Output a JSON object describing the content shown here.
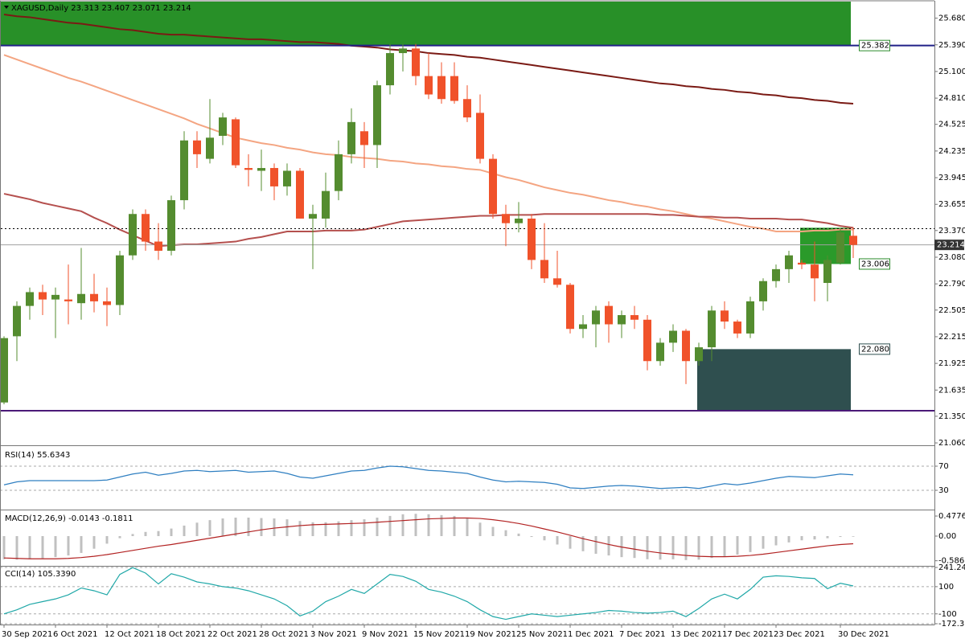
{
  "chart_data": [
    {
      "type": "candlestick",
      "title": "XAGUSD,Daily  23.313 23.407 23.071 23.214",
      "categories": [
        "30 Sep 2021",
        null,
        null,
        null,
        "6 Oct 2021",
        null,
        null,
        null,
        "12 Oct 2021",
        null,
        null,
        null,
        "18 Oct 2021",
        null,
        null,
        null,
        "22 Oct 2021",
        null,
        null,
        null,
        "28 Oct 2021",
        null,
        null,
        null,
        "3 Nov 2021",
        null,
        null,
        null,
        "9 Nov 2021",
        null,
        null,
        null,
        "15 Nov 2021",
        null,
        null,
        null,
        "19 Nov 2021",
        null,
        null,
        null,
        "25 Nov 2021",
        null,
        null,
        null,
        "1 Dec 2021",
        null,
        null,
        null,
        "7 Dec 2021",
        null,
        null,
        null,
        "13 Dec 2021",
        null,
        null,
        null,
        "17 Dec 2021",
        null,
        null,
        null,
        "23 Dec 2021",
        null,
        null,
        null,
        null,
        "30 Dec 2021",
        null
      ],
      "open": [
        21.5,
        22.22,
        22.55,
        22.7,
        22.62,
        22.62,
        22.58,
        22.68,
        22.6,
        22.56,
        23.1,
        23.55,
        23.25,
        23.15,
        23.7,
        24.35,
        24.15,
        24.4,
        24.58,
        24.05,
        24.02,
        24.05,
        23.85,
        24.02,
        23.5,
        23.5,
        23.8,
        24.2,
        24.45,
        24.3,
        24.95,
        25.3,
        25.35,
        25.05,
        25.05,
        25.05,
        24.8,
        24.65,
        24.15,
        23.55,
        23.45,
        23.5,
        23.05,
        22.85,
        22.78,
        22.3,
        22.35,
        22.55,
        22.35,
        22.45,
        22.4,
        21.95,
        22.15,
        22.28,
        21.95,
        22.1,
        22.5,
        22.38,
        22.25,
        22.6,
        22.82,
        22.95,
        23.02,
        23,
        22.8,
        23.02,
        23.313
      ],
      "high": [
        22.22,
        22.6,
        22.75,
        22.78,
        22.75,
        23,
        23.18,
        22.9,
        22.75,
        23.15,
        23.6,
        23.6,
        23.45,
        23.75,
        24.45,
        24.45,
        24.8,
        24.65,
        24.6,
        24.2,
        24.25,
        24.1,
        24.1,
        24.05,
        23.65,
        24,
        24.35,
        24.7,
        24.55,
        25,
        25.4,
        25.4,
        25.4,
        25.3,
        25.2,
        25.2,
        24.95,
        24.85,
        24.2,
        23.65,
        23.68,
        23.55,
        23.45,
        23.15,
        22.8,
        22.45,
        22.55,
        22.6,
        22.5,
        22.55,
        22.45,
        22.2,
        22.35,
        22.3,
        22.15,
        22.55,
        22.6,
        22.4,
        22.65,
        22.85,
        23,
        23.15,
        23.05,
        23.25,
        23.1,
        23.4,
        23.407
      ],
      "low": [
        21.48,
        21.95,
        22.4,
        22.45,
        22.2,
        22.35,
        22.4,
        22.48,
        22.33,
        22.45,
        23.05,
        23.15,
        23.05,
        23.1,
        23.6,
        24.05,
        24.1,
        24.3,
        24.05,
        23.85,
        23.8,
        23.7,
        23.75,
        23.5,
        22.95,
        23.4,
        23.7,
        24.1,
        24.05,
        24.05,
        24.85,
        25.1,
        24.95,
        24.8,
        24.75,
        24.75,
        24.55,
        24.1,
        23.5,
        23.2,
        23.35,
        22.95,
        22.8,
        22.75,
        22.25,
        22.2,
        22.1,
        22.15,
        22.2,
        22.3,
        21.85,
        21.9,
        22.05,
        21.7,
        21.9,
        21.95,
        22.3,
        22.2,
        22.2,
        22.5,
        22.75,
        22.8,
        22.95,
        22.6,
        22.6,
        23,
        23.071
      ],
      "close": [
        22.2,
        22.55,
        22.7,
        22.62,
        22.67,
        22.6,
        22.68,
        22.6,
        22.56,
        23.1,
        23.55,
        23.25,
        23.15,
        23.7,
        24.35,
        24.2,
        24.38,
        24.6,
        24.08,
        24.03,
        24.05,
        23.85,
        24.02,
        23.5,
        23.55,
        23.8,
        24.2,
        24.55,
        24.3,
        24.95,
        25.3,
        25.35,
        25.05,
        24.85,
        24.8,
        24.78,
        24.6,
        24.15,
        23.55,
        23.45,
        23.5,
        23.05,
        22.85,
        22.78,
        22.3,
        22.35,
        22.5,
        22.35,
        22.45,
        22.4,
        21.95,
        22.15,
        22.28,
        21.95,
        22.1,
        22.5,
        22.38,
        22.25,
        22.6,
        22.82,
        22.95,
        23.1,
        23,
        22.85,
        23.05,
        23.35,
        23.214
      ],
      "up_color": "#548c2f",
      "down_color": "#f0522a",
      "moving_averages": [
        {
          "color": "#7a1a14",
          "values": [
            25.72,
            25.7,
            25.69,
            25.67,
            25.65,
            25.63,
            25.62,
            25.6,
            25.58,
            25.56,
            25.55,
            25.53,
            25.51,
            25.5,
            25.5,
            25.49,
            25.48,
            25.47,
            25.46,
            25.45,
            25.45,
            25.44,
            25.43,
            25.42,
            25.42,
            25.41,
            25.4,
            25.38,
            25.37,
            25.36,
            25.34,
            25.33,
            25.32,
            25.3,
            25.29,
            25.28,
            25.26,
            25.25,
            25.23,
            25.21,
            25.19,
            25.17,
            25.15,
            25.13,
            25.11,
            25.09,
            25.07,
            25.05,
            25.03,
            25.01,
            24.99,
            24.97,
            24.96,
            24.94,
            24.93,
            24.91,
            24.9,
            24.88,
            24.87,
            24.85,
            24.84,
            24.82,
            24.81,
            24.79,
            24.78,
            24.76,
            24.75
          ]
        },
        {
          "color": "#f4a582",
          "values": [
            25.28,
            25.23,
            25.18,
            25.13,
            25.08,
            25.03,
            24.99,
            24.94,
            24.89,
            24.84,
            24.79,
            24.74,
            24.69,
            24.64,
            24.59,
            24.53,
            24.48,
            24.43,
            24.38,
            24.35,
            24.32,
            24.3,
            24.27,
            24.25,
            24.22,
            24.2,
            24.19,
            24.17,
            24.16,
            24.15,
            24.13,
            24.12,
            24.1,
            24.09,
            24.07,
            24.06,
            24.04,
            24.03,
            23.99,
            23.95,
            23.92,
            23.88,
            23.84,
            23.81,
            23.78,
            23.76,
            23.73,
            23.7,
            23.68,
            23.65,
            23.63,
            23.6,
            23.58,
            23.55,
            23.52,
            23.5,
            23.47,
            23.44,
            23.41,
            23.39,
            23.36,
            23.36,
            23.36,
            23.37,
            23.37,
            23.38,
            23.38
          ]
        },
        {
          "color": "#b5504e",
          "values": [
            23.77,
            23.74,
            23.71,
            23.67,
            23.64,
            23.61,
            23.58,
            23.51,
            23.45,
            23.38,
            23.32,
            23.26,
            23.2,
            23.21,
            23.22,
            23.22,
            23.23,
            23.24,
            23.25,
            23.28,
            23.3,
            23.33,
            23.36,
            23.36,
            23.36,
            23.37,
            23.37,
            23.37,
            23.38,
            23.41,
            23.44,
            23.47,
            23.48,
            23.49,
            23.5,
            23.51,
            23.52,
            23.53,
            23.53,
            23.54,
            23.54,
            23.54,
            23.55,
            23.55,
            23.55,
            23.55,
            23.55,
            23.55,
            23.55,
            23.55,
            23.55,
            23.54,
            23.54,
            23.53,
            23.52,
            23.52,
            23.51,
            23.51,
            23.5,
            23.5,
            23.5,
            23.49,
            23.49,
            23.47,
            23.45,
            23.42,
            23.4
          ]
        }
      ],
      "zones": [
        {
          "low": 25.382,
          "high": 25.86,
          "start": 0,
          "color": "#289028"
        },
        {
          "low": 21.41,
          "high": 22.08,
          "start": 54,
          "color": "#2f4f4f"
        },
        {
          "low": 23.006,
          "high": 23.4,
          "start": 62,
          "color": "#2a9a2a"
        }
      ],
      "levels": [
        {
          "value": 25.382,
          "color": "#202088",
          "line": "solid",
          "tag": "box",
          "tag_color": "#2a8a2a"
        },
        {
          "value": 23.39,
          "color": "#000000",
          "line": "dotted"
        },
        {
          "value": 23.214,
          "color": "#a0a0a0",
          "line": "solid",
          "tag": "axis",
          "tag_color": "#333333"
        },
        {
          "value": 23.006,
          "line": "none",
          "tag": "box",
          "tag_color": "#2a8a2a"
        },
        {
          "value": 22.08,
          "label": "22.080",
          "line": "none",
          "tag": "box",
          "tag_color": "#2f4f4f"
        },
        {
          "value": 21.41,
          "color": "#4b1a78",
          "line": "solid"
        }
      ],
      "ylim": [
        21.043,
        25.86
      ],
      "yticks": [
        {
          "value": 25.68,
          "label": "25.680"
        },
        {
          "value": 25.39,
          "label": "25.390"
        },
        {
          "value": 25.1,
          "label": "25.100"
        },
        {
          "value": 24.81,
          "label": "24.810"
        },
        24.525,
        24.235,
        23.945,
        23.655,
        {
          "value": 23.37,
          "label": "23.370"
        },
        {
          "value": 23.08,
          "label": "23.080"
        },
        {
          "value": 22.79,
          "label": "22.790"
        },
        22.505,
        22.215,
        21.925,
        21.635,
        {
          "value": 21.35,
          "label": "21.350"
        },
        {
          "value": 21.06,
          "label": "21.060"
        }
      ],
      "grid": false
    },
    {
      "type": "line",
      "title": "RSI(14) 55.6343",
      "series": [
        {
          "color": "#2f7fc1",
          "values": [
            39,
            44,
            46,
            46,
            46,
            46,
            46,
            46,
            47,
            52,
            57,
            60,
            55,
            58,
            62,
            63,
            61,
            62,
            63,
            60,
            61,
            62,
            58,
            52,
            50,
            54,
            58,
            62,
            63,
            67,
            70,
            69,
            66,
            63,
            62,
            60,
            58,
            52,
            47,
            44,
            45,
            44,
            43,
            40,
            34,
            33,
            35,
            37,
            38,
            37,
            35,
            33,
            34,
            35,
            33,
            37,
            41,
            39,
            42,
            46,
            50,
            53,
            52,
            51,
            54,
            57,
            55.6343
          ]
        }
      ],
      "ylim": [
        0,
        100
      ],
      "yticks": [
        70,
        30
      ],
      "grid": true
    },
    {
      "type": "macd",
      "title": "MACD(12,26,9) -0.0143 -0.1811",
      "series": [
        {
          "type": "bar",
          "color": "#c0c0c0",
          "values": [
            -0.55,
            -0.56,
            -0.55,
            -0.53,
            -0.5,
            -0.46,
            -0.4,
            -0.3,
            -0.18,
            -0.05,
            0.05,
            0.1,
            0.12,
            0.18,
            0.25,
            0.32,
            0.38,
            0.42,
            0.44,
            0.44,
            0.43,
            0.42,
            0.4,
            0.36,
            0.33,
            0.33,
            0.35,
            0.38,
            0.4,
            0.44,
            0.48,
            0.52,
            0.53,
            0.52,
            0.5,
            0.48,
            0.42,
            0.32,
            0.22,
            0.14,
            0.06,
            -0.02,
            -0.1,
            -0.2,
            -0.3,
            -0.36,
            -0.42,
            -0.46,
            -0.5,
            -0.52,
            -0.55,
            -0.56,
            -0.55,
            -0.57,
            -0.56,
            -0.52,
            -0.48,
            -0.44,
            -0.38,
            -0.3,
            -0.22,
            -0.15,
            -0.1,
            -0.08,
            -0.05,
            -0.02,
            -0.0143
          ]
        },
        {
          "type": "line",
          "color": "#b22222",
          "values": [
            -0.52,
            -0.53,
            -0.54,
            -0.54,
            -0.54,
            -0.53,
            -0.51,
            -0.48,
            -0.44,
            -0.39,
            -0.34,
            -0.29,
            -0.24,
            -0.2,
            -0.15,
            -0.1,
            -0.05,
            0,
            0.05,
            0.1,
            0.15,
            0.19,
            0.22,
            0.25,
            0.27,
            0.28,
            0.29,
            0.3,
            0.31,
            0.33,
            0.35,
            0.37,
            0.39,
            0.41,
            0.42,
            0.43,
            0.43,
            0.42,
            0.39,
            0.35,
            0.3,
            0.24,
            0.17,
            0.1,
            0.02,
            -0.06,
            -0.13,
            -0.2,
            -0.26,
            -0.31,
            -0.36,
            -0.4,
            -0.43,
            -0.46,
            -0.48,
            -0.49,
            -0.49,
            -0.48,
            -0.46,
            -0.43,
            -0.39,
            -0.35,
            -0.31,
            -0.27,
            -0.23,
            -0.2,
            -0.1811
          ]
        }
      ],
      "ylim": [
        -0.669,
        0.593
      ],
      "yticks": [
        0.4776,
        {
          "value": 0,
          "label": "0.00"
        },
        -0.5862
      ],
      "grid": false
    },
    {
      "type": "line",
      "title": "CCI(14) 105.3390",
      "series": [
        {
          "color": "#20a8a8",
          "values": [
            -100,
            -70,
            -30,
            -10,
            10,
            40,
            90,
            70,
            40,
            190,
            240,
            200,
            120,
            195,
            170,
            135,
            120,
            100,
            90,
            70,
            40,
            10,
            -40,
            -115,
            -80,
            -10,
            30,
            80,
            50,
            120,
            190,
            175,
            140,
            80,
            60,
            30,
            -10,
            -70,
            -120,
            -140,
            -120,
            -100,
            -110,
            -120,
            -110,
            -100,
            -90,
            -75,
            -80,
            -90,
            -95,
            -90,
            -80,
            -120,
            -60,
            10,
            45,
            10,
            80,
            170,
            180,
            175,
            165,
            160,
            85,
            125,
            105.339
          ]
        }
      ],
      "ylim": [
        -172.334,
        241.2444
      ],
      "yticks": [
        241.2444,
        100,
        -100,
        -172.334
      ],
      "grid": true
    }
  ]
}
